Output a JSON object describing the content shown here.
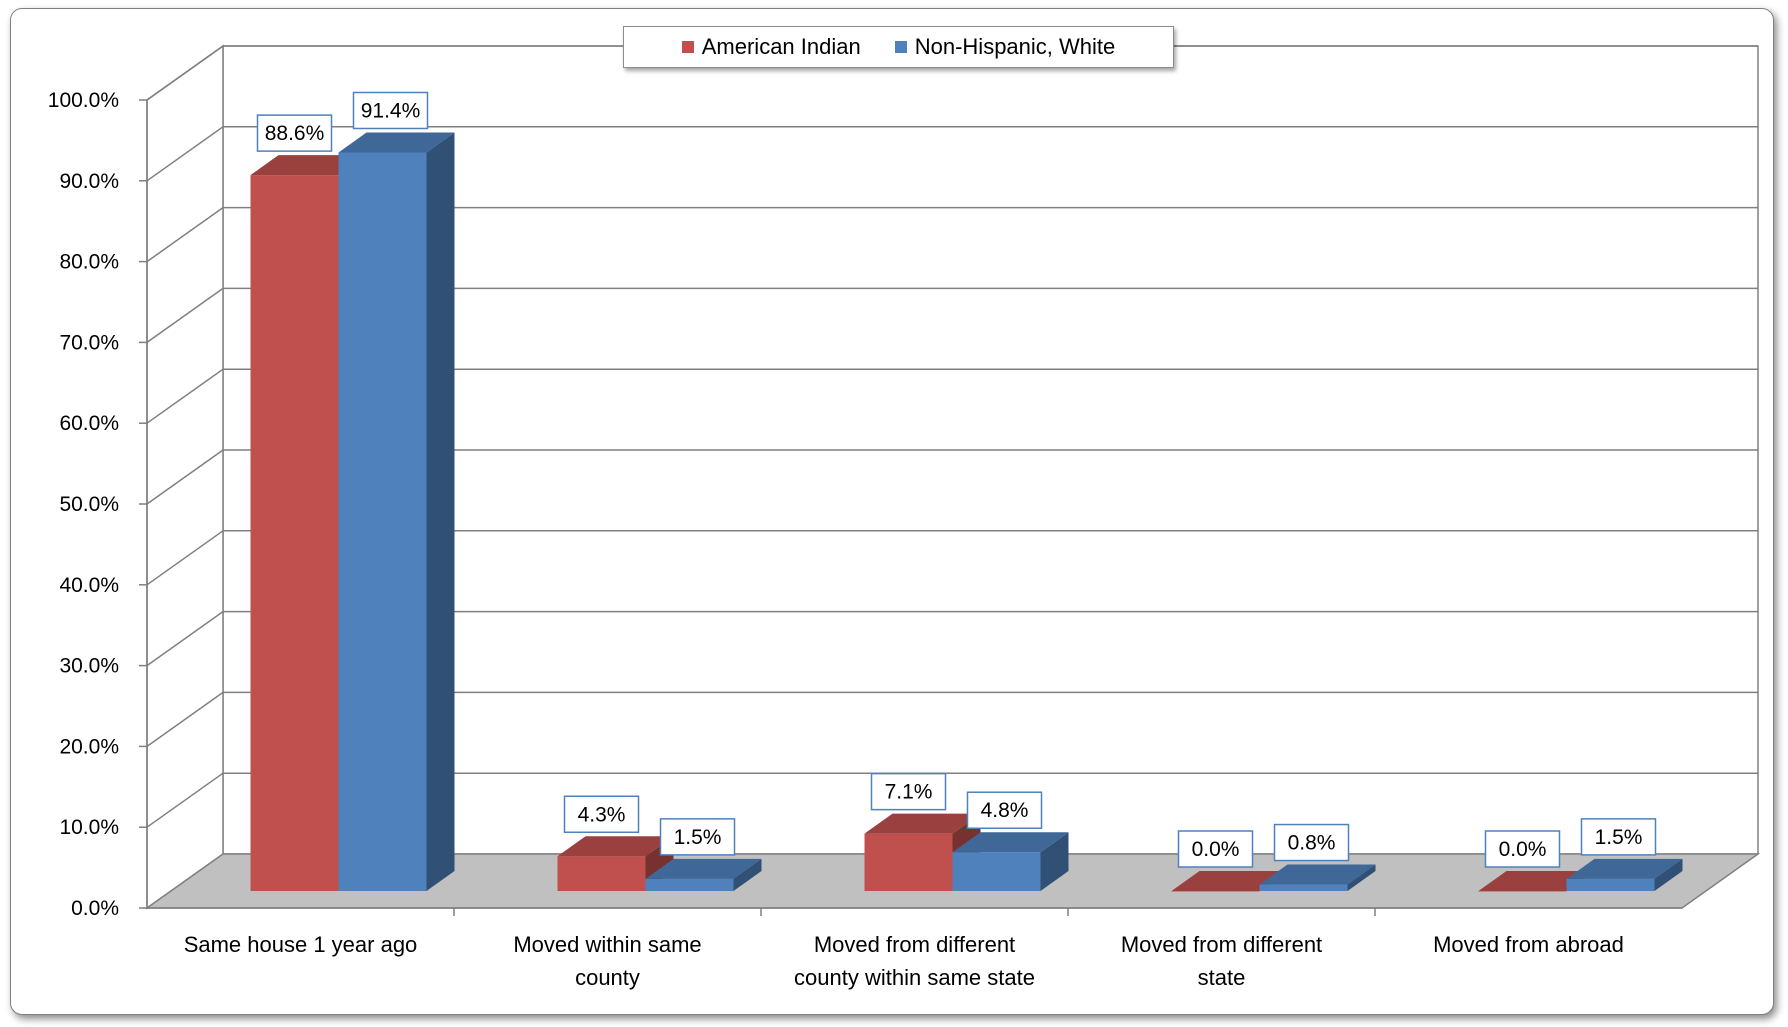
{
  "chart_data": {
    "type": "bar",
    "title": "",
    "xlabel": "",
    "ylabel": "",
    "ylim": [
      0,
      100
    ],
    "y_ticks": [
      "0.0%",
      "10.0%",
      "20.0%",
      "30.0%",
      "40.0%",
      "50.0%",
      "60.0%",
      "70.0%",
      "80.0%",
      "90.0%",
      "100.0%"
    ],
    "categories": [
      [
        "Same house 1 year ago"
      ],
      [
        "Moved within same",
        "county"
      ],
      [
        "Moved from different",
        "county within same state"
      ],
      [
        "Moved from different",
        "state"
      ],
      [
        "Moved from abroad"
      ]
    ],
    "series": [
      {
        "name": "American Indian",
        "color": "#c0504d",
        "values": [
          88.6,
          4.3,
          7.1,
          0.0,
          0.0
        ],
        "labels": [
          "88.6%",
          "4.3%",
          "7.1%",
          "0.0%",
          "0.0%"
        ]
      },
      {
        "name": "Non-Hispanic, White",
        "color": "#4f81bd",
        "values": [
          91.4,
          1.5,
          4.8,
          0.8,
          1.5
        ],
        "labels": [
          "91.4%",
          "1.5%",
          "4.8%",
          "0.8%",
          "1.5%"
        ]
      }
    ],
    "legend_position": "top-center",
    "grid": true,
    "style": "3d-clustered-column"
  }
}
